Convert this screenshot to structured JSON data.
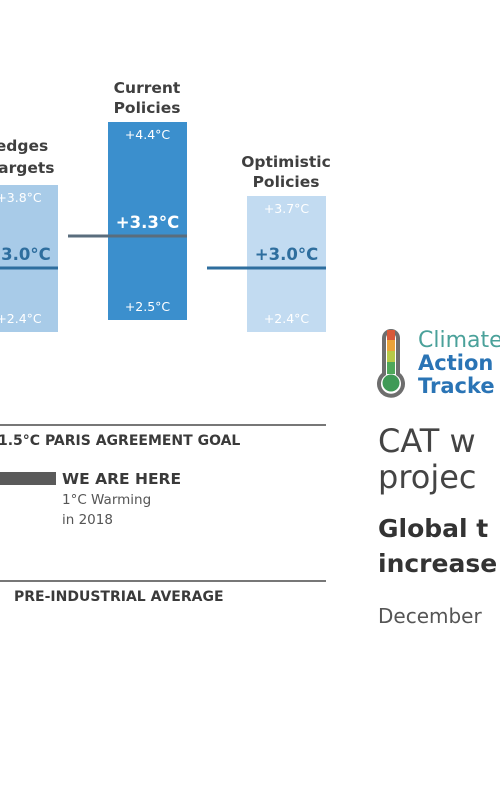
{
  "chart_data": {
    "type": "bar",
    "unit": "°C",
    "series": [
      {
        "name": "Pledges & Targets",
        "header": [
          "edges",
          "Targets"
        ],
        "low": 2.4,
        "mid": 3.0,
        "high": 3.8,
        "low_label": "+2.4°C",
        "mid_label": "+3.0°C",
        "high_label": "+3.8°C",
        "color": "#a8cbe8"
      },
      {
        "name": "Current Policies",
        "header": [
          "Current",
          "Policies"
        ],
        "low": 2.5,
        "mid": 3.3,
        "high": 4.4,
        "low_label": "+2.5°C",
        "mid_label": "+3.3°C",
        "high_label": "+4.4°C",
        "color": "#3b8fcd"
      },
      {
        "name": "Optimistic Policies",
        "header": [
          "Optimistic",
          "Policies"
        ],
        "low": 2.4,
        "mid": 3.0,
        "high": 3.7,
        "low_label": "+2.4°C",
        "mid_label": "+3.0°C",
        "high_label": "+3.7°C",
        "color": "#c2dbf1"
      }
    ],
    "reference_lines": [
      {
        "value": 1.5,
        "label": "1.5°C PARIS AGREEMENT GOAL"
      },
      {
        "value": 0,
        "label": "PRE-INDUSTRIAL AVERAGE"
      }
    ],
    "current_marker": {
      "value": 1.0,
      "label": "WE ARE HERE",
      "sub1": "1°C Warming",
      "sub2": "in 2018"
    }
  },
  "colors": {
    "midline": "#2e6e9e",
    "current_midline": "#5a6d7d",
    "ref_line": "#777777",
    "here_bar": "#5a5a5a",
    "logo_green": "#4aa19a",
    "logo_blue": "#2a74b5"
  },
  "logo": {
    "line1": "Climate",
    "line2": "Action",
    "line3": "Tracke",
    "icon": "thermometer-icon"
  },
  "title": {
    "line1": "CAT w",
    "line2": "projec",
    "bold1": "Global t",
    "bold2": "increase",
    "date": "December"
  }
}
